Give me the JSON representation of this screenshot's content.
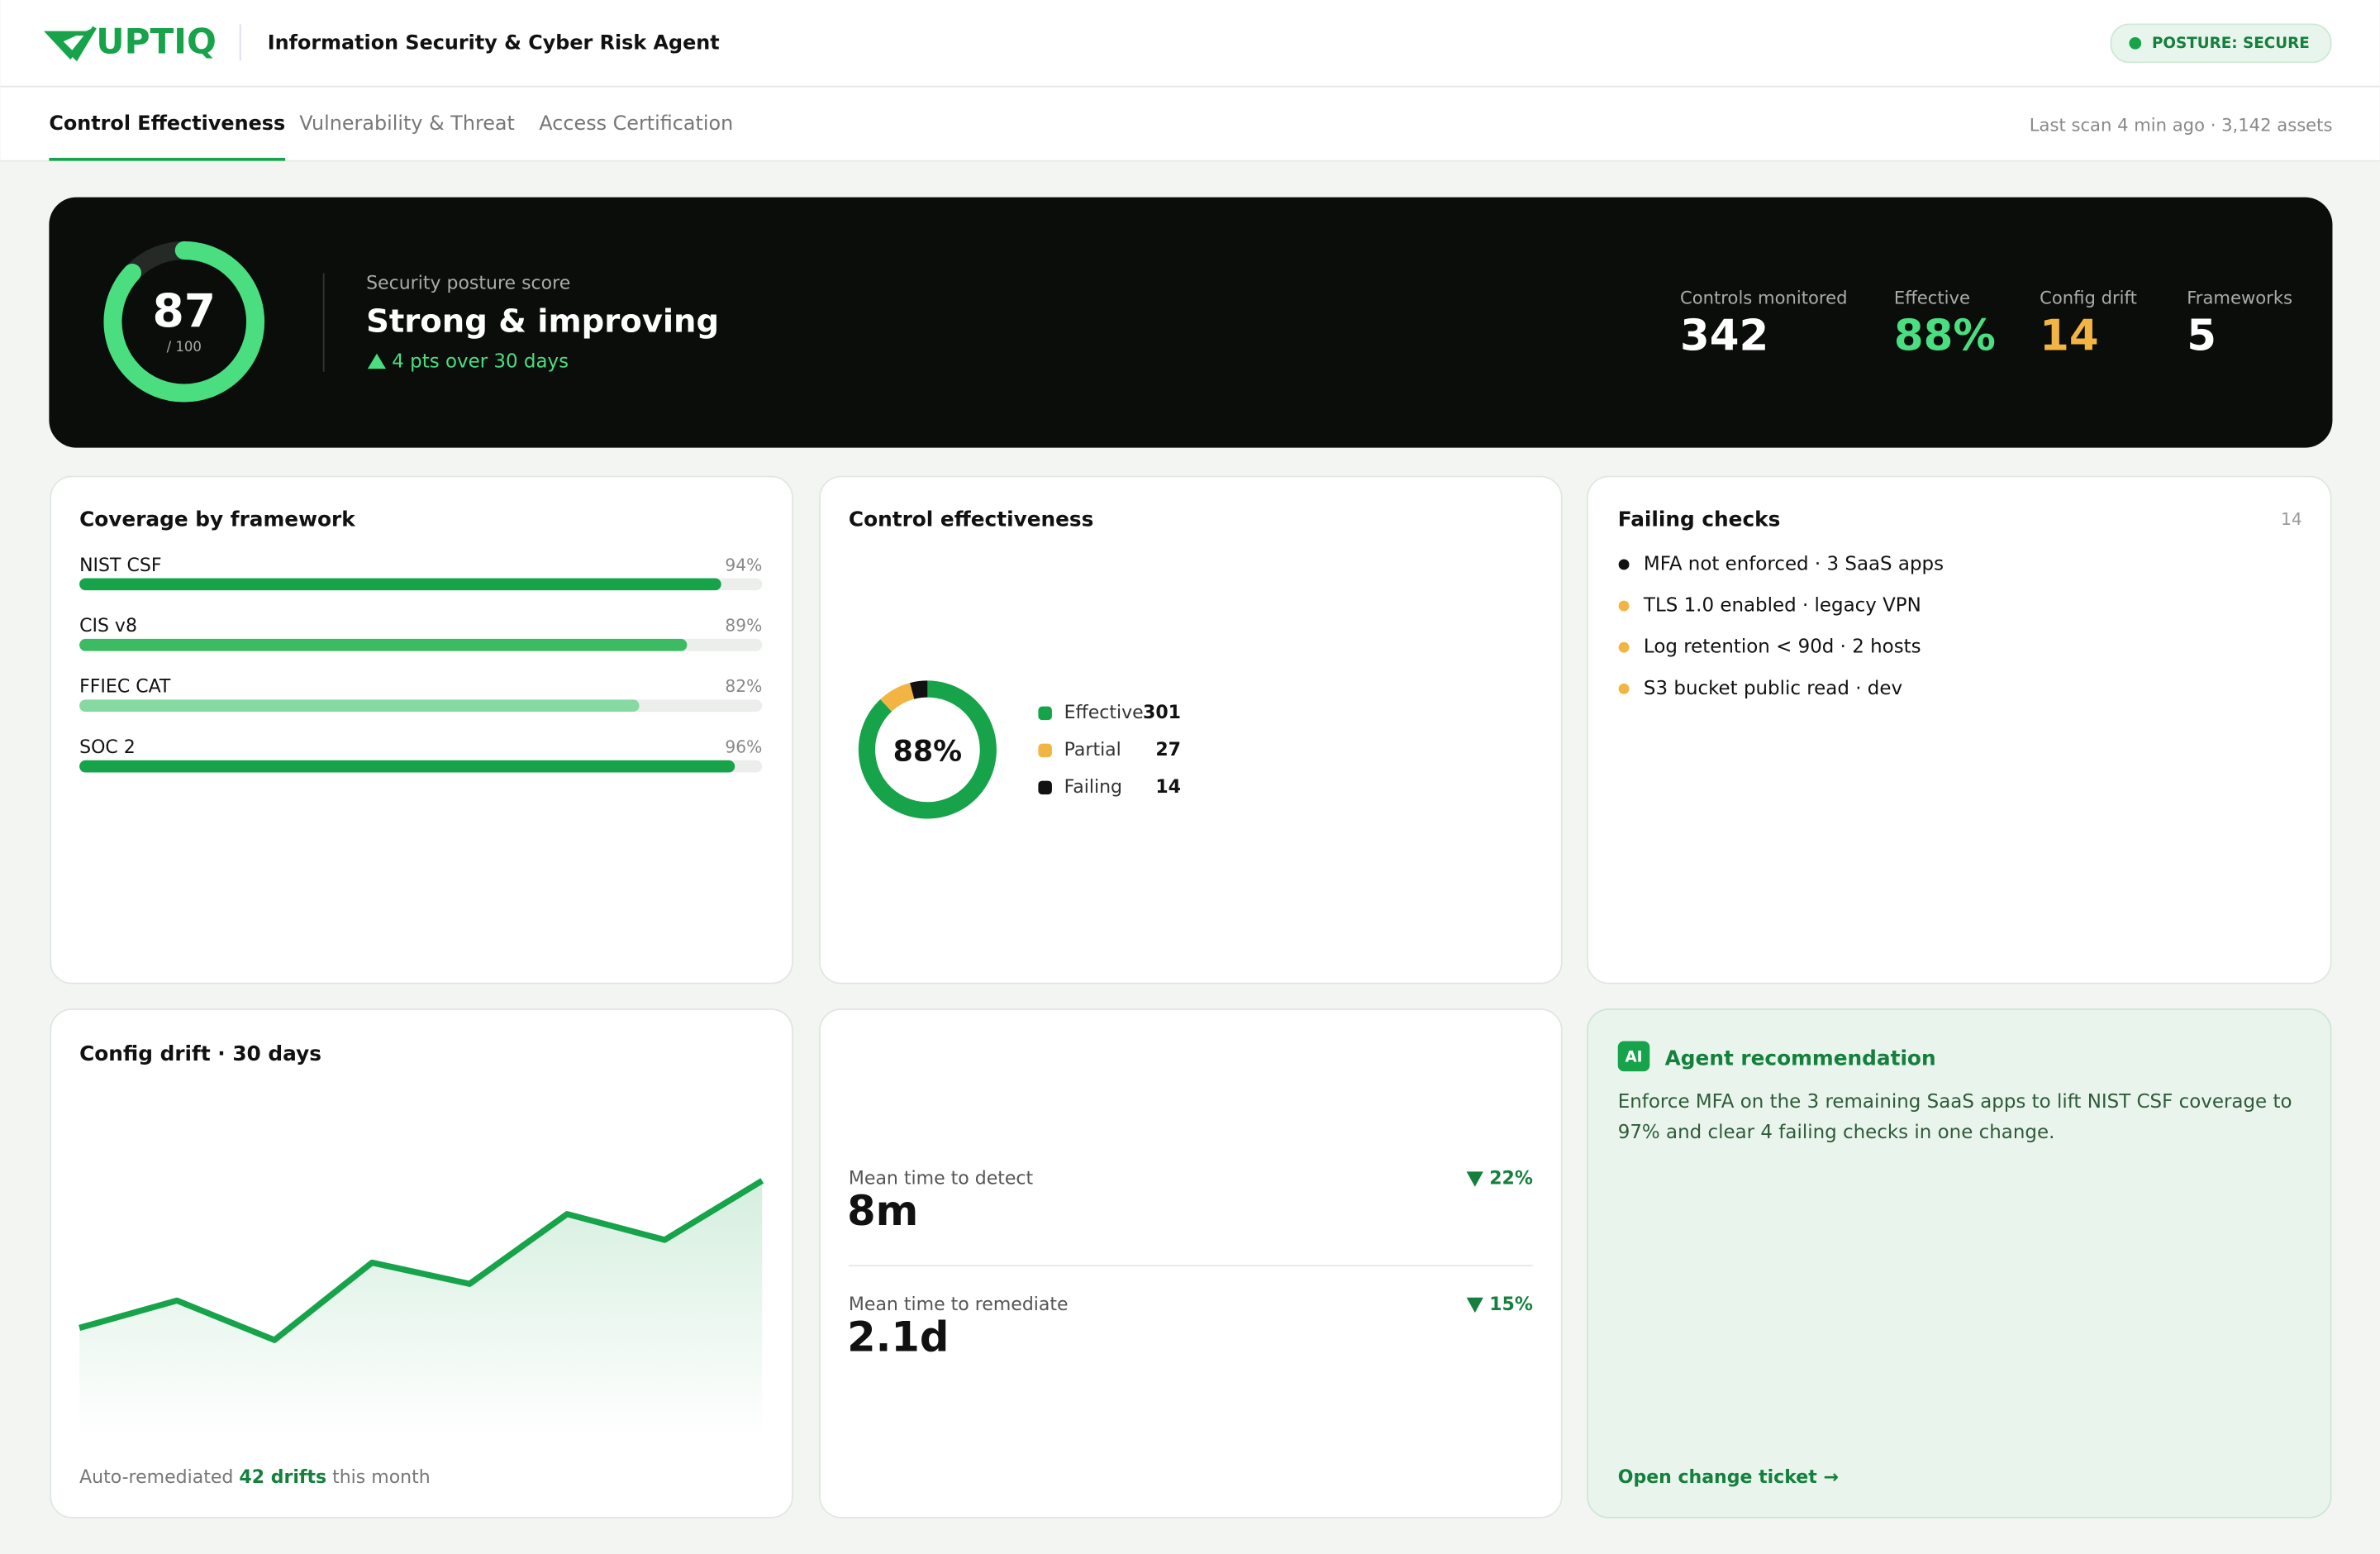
{
  "header": {
    "brand": "UPTIQ",
    "title": "Information Security & Cyber Risk Agent",
    "status": "POSTURE: SECURE"
  },
  "tabs": [
    "Control Effectiveness",
    "Vulnerability & Threat",
    "Access Certification"
  ],
  "active_tab": 0,
  "scan_info": "Last scan 4 min ago · 3,142 assets",
  "hero": {
    "score": 87,
    "score_max": {
      "value": 100,
      "label": "/ 100"
    },
    "label": "Security posture score",
    "headline": "Strong & improving",
    "trend": "4 pts over 30 days",
    "stats": [
      {
        "label": "Controls monitored",
        "value": 342,
        "color": "#ffffff"
      },
      {
        "label": "Effective",
        "value": 88,
        "value_label": "88%",
        "color": "#4ade80"
      },
      {
        "label": "Config drift",
        "value": 14,
        "color": "#f2b544"
      },
      {
        "label": "Frameworks",
        "value": 5,
        "color": "#ffffff"
      }
    ]
  },
  "coverage": {
    "type": "bar",
    "title": "Coverage by framework",
    "categories": [
      "NIST CSF",
      "CIS v8",
      "FFIEC CAT",
      "SOC 2"
    ],
    "values": [
      94,
      89,
      82,
      96
    ],
    "value_labels": [
      "94%",
      "89%",
      "82%",
      "96%"
    ],
    "colors": [
      "#16a34a",
      "#3dbb62",
      "#86d9a0",
      "#16a34a"
    ],
    "xlim": [
      0,
      100
    ]
  },
  "effectiveness": {
    "type": "donut",
    "title": "Control effectiveness",
    "center": {
      "value": 88,
      "label": "88%"
    },
    "series": [
      {
        "name": "Effective",
        "value": 301,
        "color": "#16a34a"
      },
      {
        "name": "Partial",
        "value": 27,
        "color": "#f2b544"
      },
      {
        "name": "Failing",
        "value": 14,
        "color": "#111111"
      }
    ]
  },
  "failing": {
    "title": "Failing checks",
    "count": 14,
    "items": [
      {
        "text": "MFA not enforced · 3 SaaS apps",
        "color": "#111111"
      },
      {
        "text": "TLS 1.0 enabled · legacy VPN",
        "color": "#f2b544"
      },
      {
        "text": "Log retention < 90d · 2 hosts",
        "color": "#f2b544"
      },
      {
        "text": "S3 bucket public read · dev",
        "color": "#f2b544"
      }
    ]
  },
  "drift": {
    "type": "line",
    "title": "Config drift · 30 days",
    "values": [
      73,
      91,
      65,
      116,
      102,
      148,
      131,
      170
    ],
    "ylim": [
      0,
      230
    ],
    "color": "#16a34a",
    "note": [
      "Auto-remediated",
      "42 drifts",
      "this month"
    ]
  },
  "metrics": [
    {
      "label": "Mean time to detect",
      "value": "8m",
      "change": "22%"
    },
    {
      "label": "Mean time to remediate",
      "value": "2.1d",
      "change": "15%"
    }
  ],
  "recommendation": {
    "badge": "AI",
    "title": "Agent recommendation",
    "body": "Enforce MFA on the 3 remaining SaaS apps to lift NIST CSF coverage to 97% and clear 4 failing checks in one change.",
    "action": "Open change ticket →"
  }
}
